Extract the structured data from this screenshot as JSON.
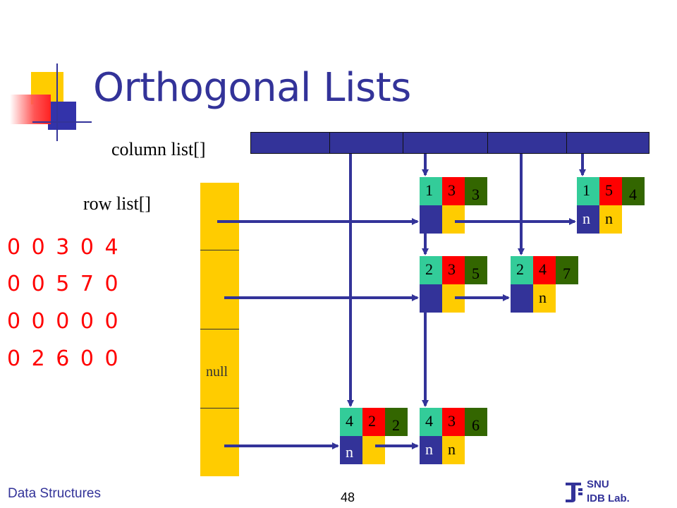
{
  "slide": {
    "title": "Orthogonal Lists",
    "column_label": "column list[]",
    "row_label": "row list[]",
    "null_label": "null",
    "footer_left": "Data Structures",
    "page_number": "48",
    "logo_line1": "SNU",
    "logo_line2": "IDB Lab."
  },
  "matrix": [
    "0 0 3 0 4",
    "0 0 5 7 0",
    "0 0 0 0 0",
    "0 2 6 0 0"
  ],
  "nodes": [
    {
      "row": "1",
      "col": "3",
      "value": "3",
      "down": "",
      "right": ""
    },
    {
      "row": "1",
      "col": "5",
      "value": "4",
      "down": "n",
      "right": "n"
    },
    {
      "row": "2",
      "col": "3",
      "value": "5",
      "down": "",
      "right": ""
    },
    {
      "row": "2",
      "col": "4",
      "value": "7",
      "down": "",
      "right": "n"
    },
    {
      "row": "4",
      "col": "2",
      "value": "2",
      "down": "n",
      "right": ""
    },
    {
      "row": "4",
      "col": "3",
      "value": "6",
      "down": "n",
      "right": "n"
    }
  ],
  "colors": {
    "title": "#333399",
    "matrix_text": "#ff0000",
    "row_field": "#33cc99",
    "col_field": "#ff0000",
    "value_field": "#336600",
    "down_field": "#333399",
    "right_field": "#ffcc00",
    "arrow": "#333399"
  }
}
